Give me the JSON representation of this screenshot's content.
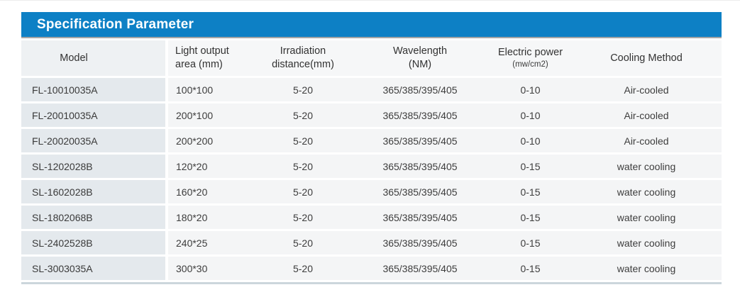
{
  "title_bar": {
    "title": "Specification Parameter"
  },
  "table": {
    "columns": [
      {
        "label": "Model",
        "sub": ""
      },
      {
        "label": "Light output",
        "sub": "area (mm)"
      },
      {
        "label": "Irradiation",
        "sub": "distance(mm)"
      },
      {
        "label": "Wavelength",
        "sub": "(NM)"
      },
      {
        "label": "Electric power",
        "sub": "(mw/cm2)"
      },
      {
        "label": "Cooling Method",
        "sub": ""
      }
    ],
    "rows": [
      [
        "FL-10010035A",
        "100*100",
        "5-20",
        "365/385/395/405",
        "0-10",
        "Air-cooled"
      ],
      [
        "FL-20010035A",
        "200*100",
        "5-20",
        "365/385/395/405",
        "0-10",
        "Air-cooled"
      ],
      [
        "FL-20020035A",
        "200*200",
        "5-20",
        "365/385/395/405",
        "0-10",
        "Air-cooled"
      ],
      [
        "SL-1202028B",
        "120*20",
        "5-20",
        "365/385/395/405",
        "0-15",
        "water cooling"
      ],
      [
        "SL-1602028B",
        "160*20",
        "5-20",
        "365/385/395/405",
        "0-15",
        "water cooling"
      ],
      [
        "SL-1802068B",
        "180*20",
        "5-20",
        "365/385/395/405",
        "0-15",
        "water cooling"
      ],
      [
        "SL-2402528B",
        "240*25",
        "5-20",
        "365/385/395/405",
        "0-15",
        "water cooling"
      ],
      [
        "SL-3003035A",
        "300*30",
        "5-20",
        "365/385/395/405",
        "0-15",
        "water cooling"
      ]
    ]
  },
  "colors": {
    "accent_blue": "#0d80c5",
    "title_underline_gray": "#a5a5a5",
    "model_cell_bg": "#e4e9ed",
    "data_cell_bg": "#f4f5f6",
    "header_model_bg": "#eef1f3",
    "header_cell_bg": "#f6f7f8",
    "bottom_line": "#ccd6dc",
    "title_text": "#ffffff",
    "body_text": "#3d3d3d"
  }
}
